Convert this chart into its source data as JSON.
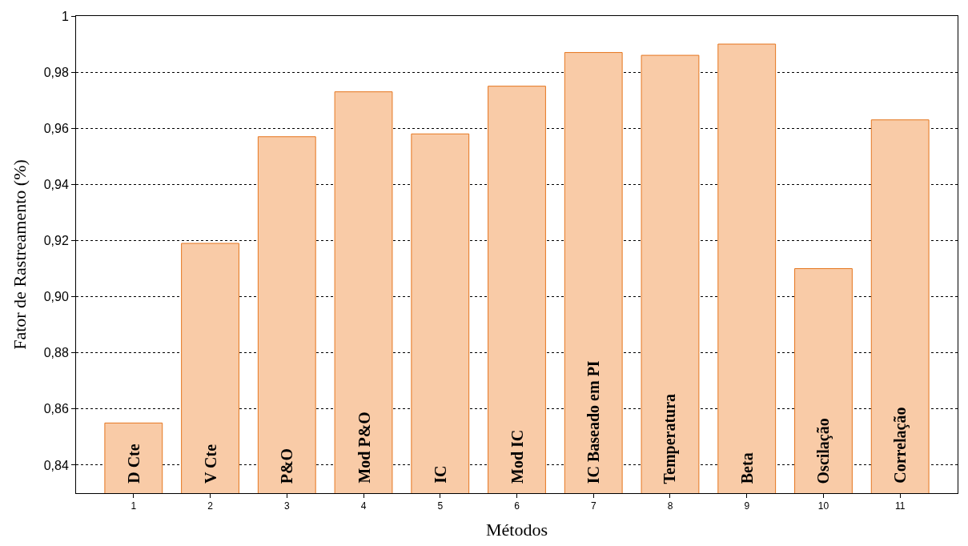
{
  "chart_data": {
    "type": "bar",
    "xlabel": "Métodos",
    "ylabel": "Fator de Rastreamento (%)",
    "categories": [
      "1",
      "2",
      "3",
      "4",
      "5",
      "6",
      "7",
      "8",
      "9",
      "10",
      "11"
    ],
    "values": [
      0.855,
      0.919,
      0.957,
      0.973,
      0.958,
      0.975,
      0.987,
      0.986,
      0.99,
      0.91,
      0.963
    ],
    "color": "#f9cba7",
    "ylim": [
      0.83,
      1
    ],
    "yticks": [
      {
        "value": 0.84,
        "label": "0,84"
      },
      {
        "value": 0.86,
        "label": "0,86"
      },
      {
        "value": 0.88,
        "label": "0,88"
      },
      {
        "value": 0.9,
        "label": "0,90"
      },
      {
        "value": 0.92,
        "label": "0,92"
      },
      {
        "value": 0.94,
        "label": "0,94"
      },
      {
        "value": 0.96,
        "label": "0,96"
      },
      {
        "value": 0.98,
        "label": "0,98"
      },
      {
        "value": 1,
        "label": "1"
      }
    ],
    "grid": "y",
    "annotations": [
      "D Cte",
      "V Cte",
      "P&O",
      "Mod P&O",
      "IC",
      "Mod IC",
      "IC Baseado em PI",
      "Temperatura",
      "Beta",
      "Oscilação",
      "Correlação"
    ]
  }
}
